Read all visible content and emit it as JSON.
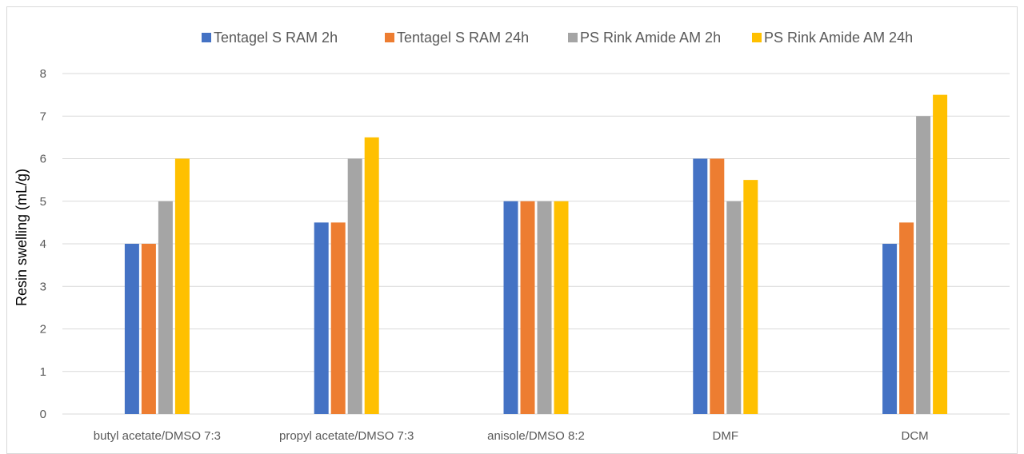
{
  "chart_data": {
    "type": "bar",
    "title": "",
    "xlabel": "",
    "ylabel": "Resin swelling (mL/g)",
    "ylim": [
      0,
      8
    ],
    "yticks": [
      "0",
      "1",
      "2",
      "3",
      "4",
      "5",
      "6",
      "7",
      "8"
    ],
    "grid": true,
    "legend_position": "top",
    "categories": [
      "butyl acetate/DMSO 7:3",
      "propyl acetate/DMSO 7:3",
      "anisole/DMSO 8:2",
      "DMF",
      "DCM"
    ],
    "series": [
      {
        "name": "Tentagel S RAM  2h",
        "color": "#4472c4",
        "values": [
          4,
          4.5,
          5,
          6,
          4
        ]
      },
      {
        "name": "Tentagel S RAM  24h",
        "color": "#ed7d31",
        "values": [
          4,
          4.5,
          5,
          6,
          4.5
        ]
      },
      {
        "name": "PS Rink Amide AM 2h",
        "color": "#a5a5a5",
        "values": [
          5,
          6,
          5,
          5,
          7
        ]
      },
      {
        "name": "PS Rink Amide AM 24h",
        "color": "#ffc000",
        "values": [
          6,
          6.5,
          5,
          5.5,
          7.5
        ]
      }
    ]
  }
}
